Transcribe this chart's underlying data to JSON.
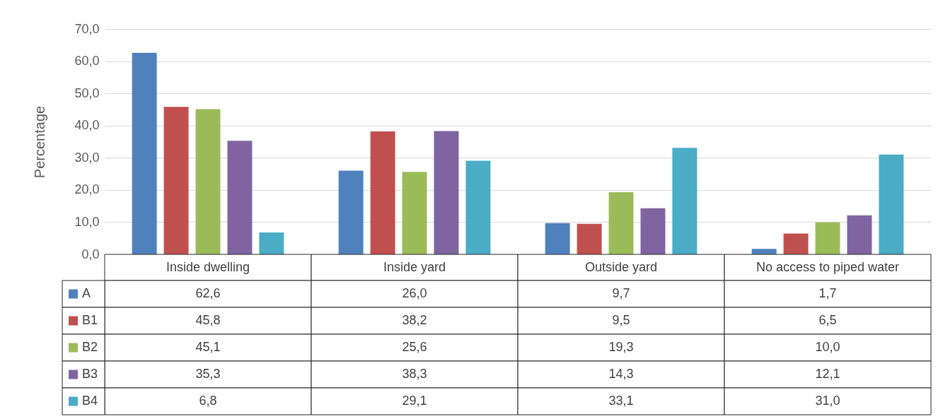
{
  "chart_data": {
    "type": "bar",
    "ylabel": "Percentage",
    "categories": [
      "Inside dwelling",
      "Inside yard",
      "Outside yard",
      "No access to piped water"
    ],
    "series": [
      {
        "name": "A",
        "color": "#4f81bd",
        "values": [
          62.6,
          26.0,
          9.7,
          1.7
        ],
        "value_labels": [
          "62,6",
          "26,0",
          "9,7",
          "1,7"
        ]
      },
      {
        "name": "B1",
        "color": "#c0504d",
        "values": [
          45.8,
          38.2,
          9.5,
          6.5
        ],
        "value_labels": [
          "45,8",
          "38,2",
          "9,5",
          "6,5"
        ]
      },
      {
        "name": "B2",
        "color": "#9bbb59",
        "values": [
          45.1,
          25.6,
          19.3,
          10.0
        ],
        "value_labels": [
          "45,1",
          "25,6",
          "19,3",
          "10,0"
        ]
      },
      {
        "name": "B3",
        "color": "#8064a2",
        "values": [
          35.3,
          38.3,
          14.3,
          12.1
        ],
        "value_labels": [
          "35,3",
          "38,3",
          "14,3",
          "12,1"
        ]
      },
      {
        "name": "B4",
        "color": "#4bacc6",
        "values": [
          6.8,
          29.1,
          33.1,
          31.0
        ],
        "value_labels": [
          "6,8",
          "29,1",
          "33,1",
          "31,0"
        ]
      }
    ],
    "ylim": [
      0,
      70
    ],
    "yticks": [
      {
        "value": 0,
        "label": "0,0"
      },
      {
        "value": 10,
        "label": "10,0"
      },
      {
        "value": 20,
        "label": "20,0"
      },
      {
        "value": 30,
        "label": "30,0"
      },
      {
        "value": 40,
        "label": "40,0"
      },
      {
        "value": 50,
        "label": "50,0"
      },
      {
        "value": 60,
        "label": "60,0"
      },
      {
        "value": 70,
        "label": "70,0"
      }
    ],
    "grid": "y",
    "legend": "bottom left"
  }
}
